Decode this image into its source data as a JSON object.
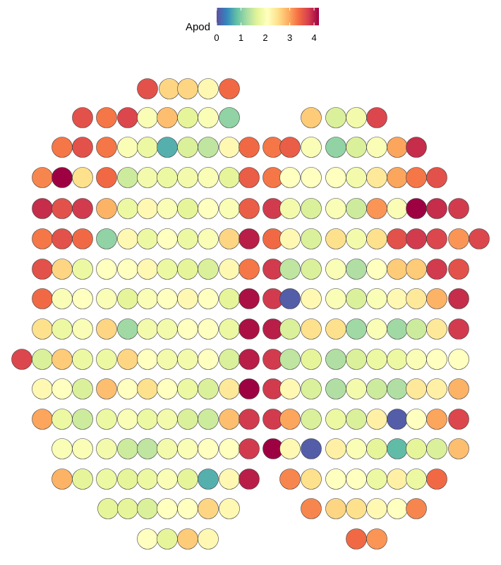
{
  "chart_data": {
    "type": "scatter",
    "title": "",
    "xlabel": "",
    "ylabel": "",
    "legend": {
      "title": "Apod",
      "placement": "top-center",
      "min": 0,
      "max": 4.2,
      "ticks": [
        "0",
        "1",
        "2",
        "3",
        "4"
      ],
      "colors": [
        "#5E4FA2",
        "#3288BD",
        "#66C2A5",
        "#ABDDA4",
        "#E6F598",
        "#FFFFBF",
        "#FEE08B",
        "#FDAE61",
        "#F46D43",
        "#D53E4F",
        "#9E0142"
      ]
    },
    "grid": false,
    "xlim": [
      16,
      692
    ],
    "ylim": [
      110,
      782
    ],
    "rows": [
      {
        "y": 126,
        "x": [
          209,
          240,
          266,
          295,
          325
        ],
        "values": [
          3.6,
          2.6,
          2.6,
          2.2,
          3.4
        ]
      },
      {
        "y": 167,
        "x": [
          117,
          151,
          181,
          209,
          237,
          266,
          295,
          325,
          441,
          476,
          505,
          534
        ],
        "values": [
          3.6,
          3.3,
          3.7,
          2.0,
          2.8,
          1.7,
          2.0,
          1.1,
          2.7,
          1.6,
          1.9,
          3.7
        ]
      },
      {
        "y": 209,
        "x": [
          88,
          117,
          151,
          181,
          209,
          237,
          266,
          295,
          325,
          353,
          387,
          411,
          441,
          476,
          505,
          534,
          563,
          590
        ],
        "values": [
          3.3,
          3.6,
          3.3,
          2.0,
          1.8,
          0.7,
          1.6,
          1.4,
          2.2,
          3.4,
          3.3,
          3.5,
          2.0,
          1.1,
          1.6,
          2.0,
          3.0,
          3.9
        ]
      },
      {
        "y": 252,
        "x": [
          60,
          88,
          117,
          151,
          181,
          209,
          237,
          266,
          295,
          325,
          353,
          387,
          411,
          441,
          476,
          505,
          534,
          563,
          590,
          619
        ],
        "values": [
          3.2,
          4.2,
          2.5,
          3.4,
          1.5,
          1.9,
          1.8,
          1.9,
          2.0,
          1.7,
          3.5,
          3.3,
          2.1,
          2.1,
          2.1,
          1.9,
          2.4,
          3.0,
          3.3,
          3.6
        ]
      },
      {
        "y": 296,
        "x": [
          60,
          88,
          117,
          151,
          181,
          209,
          237,
          266,
          295,
          325,
          353,
          387,
          411,
          441,
          476,
          505,
          534,
          563,
          590,
          619,
          650
        ],
        "values": [
          3.9,
          3.6,
          3.8,
          2.9,
          1.8,
          2.2,
          2.0,
          1.7,
          2.1,
          2.0,
          3.5,
          3.8,
          1.9,
          1.6,
          2.0,
          1.5,
          3.1,
          2.0,
          4.2,
          3.9,
          3.8
        ]
      },
      {
        "y": 339,
        "x": [
          60,
          88,
          117,
          151,
          181,
          209,
          237,
          266,
          295,
          325,
          353,
          387,
          411,
          441,
          476,
          505,
          534,
          563,
          590,
          619,
          650,
          679
        ],
        "values": [
          3.3,
          3.6,
          3.4,
          1.1,
          2.2,
          1.8,
          2.1,
          1.8,
          2.0,
          2.6,
          4.0,
          3.4,
          2.2,
          1.6,
          2.5,
          1.9,
          2.5,
          3.6,
          3.8,
          3.7,
          3.1,
          3.7
        ]
      },
      {
        "y": 382,
        "x": [
          60,
          88,
          117,
          151,
          181,
          209,
          237,
          266,
          295,
          325,
          353,
          387,
          411,
          441,
          476,
          505,
          534,
          563,
          590,
          619,
          650
        ],
        "values": [
          3.6,
          2.6,
          1.8,
          2.1,
          2.1,
          2.2,
          1.8,
          1.7,
          1.6,
          2.2,
          3.3,
          3.8,
          1.4,
          1.6,
          2.0,
          1.3,
          2.1,
          2.7,
          2.7,
          3.8,
          3.6
        ]
      },
      {
        "y": 424,
        "x": [
          60,
          88,
          117,
          151,
          181,
          209,
          237,
          266,
          295,
          325,
          353,
          387,
          411,
          441,
          476,
          505,
          534,
          563,
          590,
          619,
          650
        ],
        "values": [
          3.4,
          2.0,
          2.1,
          2.0,
          1.7,
          2.0,
          2.1,
          2.2,
          2.1,
          1.7,
          4.1,
          3.8,
          0.1,
          2.2,
          2.0,
          1.6,
          2.0,
          2.2,
          2.4,
          2.9,
          3.9
        ]
      },
      {
        "y": 467,
        "x": [
          60,
          88,
          117,
          151,
          181,
          209,
          237,
          266,
          295,
          325,
          353,
          387,
          411,
          441,
          476,
          505,
          534,
          563,
          590,
          619,
          650
        ],
        "values": [
          2.5,
          1.8,
          2.0,
          2.6,
          1.2,
          1.9,
          1.9,
          2.1,
          2.1,
          1.8,
          4.1,
          4.0,
          1.6,
          2.5,
          2.5,
          1.2,
          2.0,
          1.2,
          1.5,
          2.4,
          3.8
        ]
      },
      {
        "y": 510,
        "x": [
          31,
          60,
          88,
          117,
          151,
          181,
          209,
          237,
          266,
          295,
          325,
          353,
          387,
          411,
          441,
          476,
          505,
          534,
          563,
          590,
          619,
          650
        ],
        "values": [
          3.7,
          1.6,
          2.7,
          1.8,
          1.8,
          2.6,
          2.1,
          1.9,
          1.9,
          2.1,
          1.6,
          4.0,
          3.8,
          1.4,
          1.7,
          1.3,
          1.6,
          1.8,
          1.8,
          2.0,
          2.1,
          2.1
        ]
      },
      {
        "y": 552,
        "x": [
          60,
          88,
          117,
          151,
          181,
          209,
          237,
          266,
          295,
          325,
          353,
          387,
          411,
          441,
          476,
          505,
          534,
          563,
          590,
          619,
          650
        ],
        "values": [
          2.2,
          2.1,
          1.6,
          2.8,
          2.1,
          2.5,
          2.1,
          1.8,
          1.6,
          2.4,
          4.2,
          3.8,
          2.2,
          1.6,
          1.3,
          1.9,
          1.5,
          1.3,
          2.4,
          2.3,
          2.9
        ]
      },
      {
        "y": 595,
        "x": [
          60,
          88,
          117,
          151,
          181,
          209,
          237,
          266,
          295,
          325,
          353,
          387,
          411,
          441,
          476,
          505,
          534,
          563,
          590,
          619,
          650
        ],
        "values": [
          3.0,
          1.8,
          1.5,
          1.8,
          2.0,
          1.8,
          1.9,
          1.6,
          1.5,
          2.8,
          3.8,
          3.8,
          3.0,
          1.6,
          1.8,
          1.6,
          2.3,
          0.1,
          2.1,
          3.0,
          3.7
        ]
      },
      {
        "y": 637,
        "x": [
          88,
          117,
          151,
          181,
          209,
          237,
          266,
          295,
          325,
          353,
          387,
          411,
          441,
          476,
          505,
          534,
          563,
          590,
          619,
          650
        ],
        "values": [
          2.0,
          2.0,
          1.9,
          1.5,
          1.4,
          1.9,
          2.0,
          2.1,
          2.1,
          3.8,
          4.2,
          2.2,
          0.1,
          2.3,
          2.0,
          1.7,
          0.8,
          1.7,
          1.6,
          2.8
        ]
      },
      {
        "y": 680,
        "x": [
          88,
          117,
          151,
          181,
          209,
          237,
          266,
          295,
          325,
          353,
          411,
          441,
          476,
          505,
          534,
          563,
          590,
          619
        ],
        "values": [
          2.9,
          1.7,
          1.8,
          1.7,
          1.8,
          2.0,
          1.7,
          0.7,
          2.2,
          4.0,
          3.2,
          2.5,
          2.1,
          2.1,
          1.8,
          2.3,
          1.8,
          3.4
        ]
      },
      {
        "y": 722,
        "x": [
          153,
          181,
          209,
          237,
          266,
          295,
          325,
          441,
          476,
          505,
          534,
          563,
          590
        ],
        "values": [
          1.7,
          1.7,
          1.6,
          2.1,
          2.1,
          2.6,
          2.2,
          3.2,
          2.6,
          2.5,
          2.2,
          2.1,
          3.2
        ]
      },
      {
        "y": 765,
        "x": [
          209,
          237,
          266,
          295,
          505,
          534
        ],
        "values": [
          2.1,
          1.7,
          2.7,
          2.2,
          3.4,
          3.1
        ]
      }
    ]
  }
}
